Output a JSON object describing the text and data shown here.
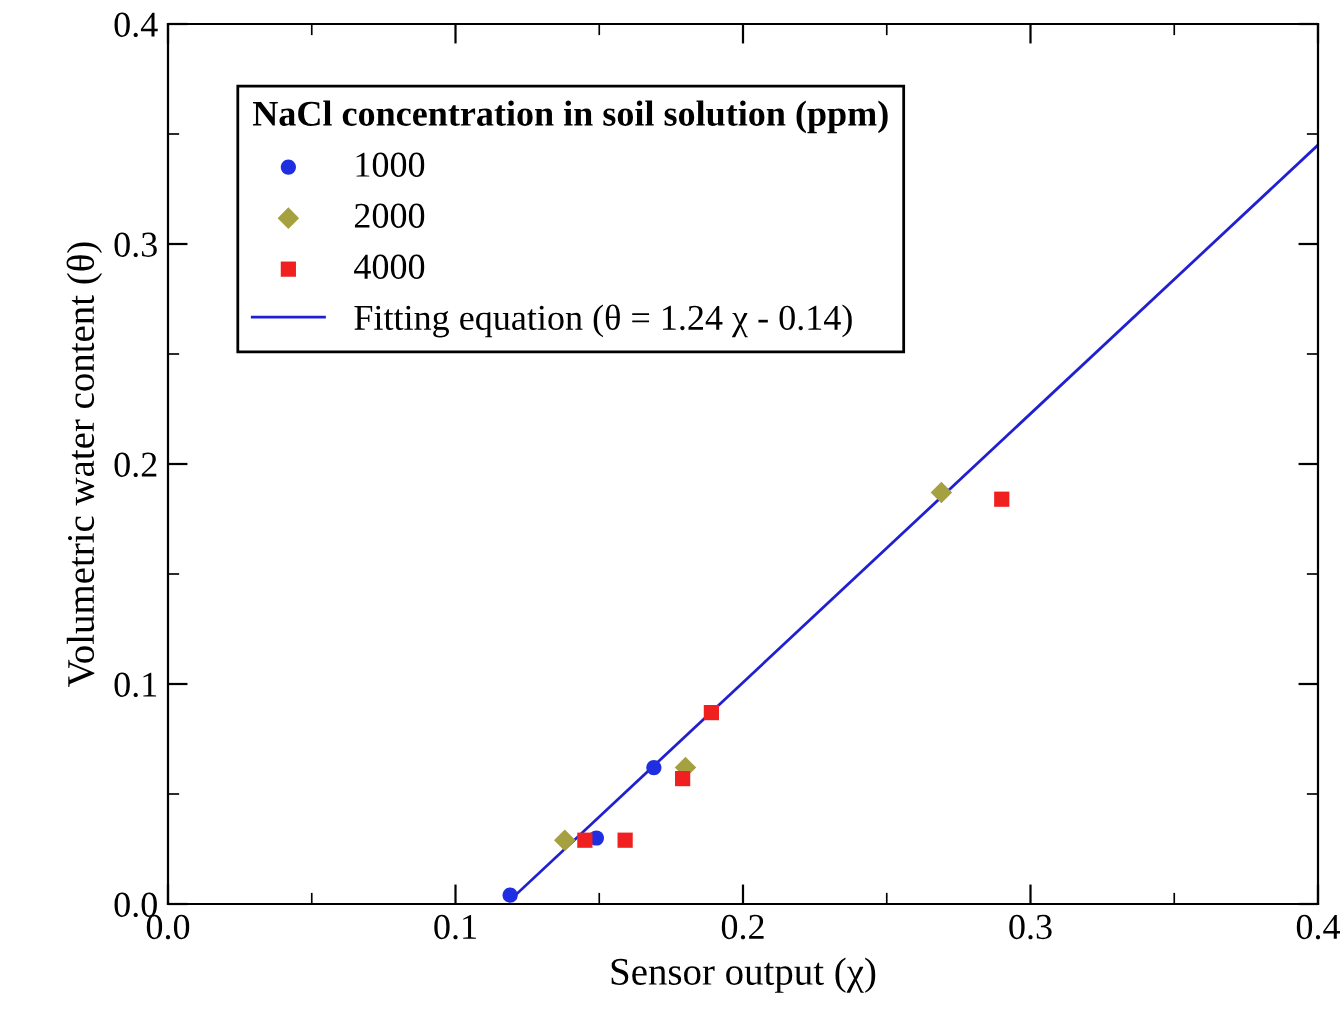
{
  "chart_data": {
    "type": "scatter",
    "xlabel": "Sensor output (χ)",
    "ylabel": "Volumetric water content (θ)",
    "legend_title": "NaCl concentration in soil solution (ppm)",
    "xlim": [
      0.0,
      0.4
    ],
    "ylim": [
      0.0,
      0.4
    ],
    "xticks": [
      "0.0",
      0.1,
      0.2,
      0.3,
      0.4
    ],
    "yticks": [
      "0.0",
      0.1,
      0.2,
      0.3,
      0.4
    ],
    "grid": false,
    "legend": "top left",
    "series": [
      {
        "name": "1000",
        "color": "#1f2ee0",
        "marker": "circle",
        "x": [
          0.119,
          0.149,
          0.169
        ],
        "values": [
          0.004,
          0.03,
          0.062
        ]
      },
      {
        "name": "2000",
        "color": "#a5a040",
        "marker": "diamond",
        "x": [
          0.138,
          0.18,
          0.269
        ],
        "values": [
          0.029,
          0.062,
          0.187
        ]
      },
      {
        "name": "4000",
        "color": "#f02020",
        "marker": "square",
        "x": [
          0.145,
          0.159,
          0.179,
          0.189,
          0.29
        ],
        "values": [
          0.029,
          0.029,
          0.057,
          0.087,
          0.184
        ]
      },
      {
        "name": "Fitting equation (θ = 1.24 χ - 0.14)",
        "type": "line",
        "color": "#2020d0",
        "marker": "none",
        "line_style": "solid",
        "x": [
          0.12,
          0.4
        ],
        "values": [
          0.003,
          0.345
        ]
      }
    ]
  }
}
